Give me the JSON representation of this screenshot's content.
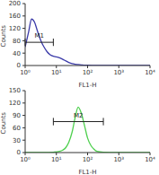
{
  "chart_data": [
    {
      "type": "line",
      "x_label": "FL1-H",
      "y_label": "Counts",
      "log": "x",
      "color": "#3a3aa8",
      "x": [
        1,
        1.3,
        1.6,
        2,
        2.5,
        3.2,
        4,
        5,
        6.3,
        8,
        10,
        12.6,
        16,
        20,
        25,
        32,
        40,
        50,
        63,
        80,
        100,
        200,
        1000,
        10000
      ],
      "values": [
        60,
        110,
        150,
        140,
        110,
        80,
        60,
        45,
        35,
        30,
        28,
        25,
        20,
        15,
        10,
        6,
        4,
        3,
        2,
        1,
        1,
        0,
        0,
        0
      ],
      "xlim": [
        1,
        10000
      ],
      "xticks": [
        {
          "value": 1,
          "label": "10⁰"
        },
        {
          "value": 10,
          "label": "10¹"
        },
        {
          "value": 100,
          "label": "10²"
        },
        {
          "value": 1000,
          "label": "10³"
        },
        {
          "value": 10000,
          "label": "10⁴"
        }
      ],
      "ylim": [
        0,
        200
      ],
      "yticks": [
        0,
        40,
        80,
        120,
        160,
        200
      ],
      "gate": {
        "label": "M1",
        "range": [
          1,
          8
        ],
        "y": 75
      }
    },
    {
      "type": "line",
      "x_label": "FL1-H",
      "y_label": "Counts",
      "log": "x",
      "color": "#4fd04f",
      "x": [
        1,
        2,
        4,
        8,
        12.6,
        16,
        20,
        25,
        32,
        40,
        50,
        63,
        80,
        100,
        126,
        160,
        200,
        320,
        1000,
        10000
      ],
      "values": [
        0,
        0,
        0,
        1,
        3,
        6,
        12,
        25,
        50,
        85,
        110,
        95,
        65,
        35,
        18,
        8,
        3,
        1,
        0,
        0
      ],
      "xlim": [
        1,
        10000
      ],
      "xticks": [
        {
          "value": 1,
          "label": "10⁰"
        },
        {
          "value": 10,
          "label": "10¹"
        },
        {
          "value": 100,
          "label": "10²"
        },
        {
          "value": 1000,
          "label": "10³"
        },
        {
          "value": 10000,
          "label": "10⁴"
        }
      ],
      "ylim": [
        0,
        150
      ],
      "yticks": [
        0,
        30,
        60,
        90,
        120,
        150
      ],
      "gate": {
        "label": "M2",
        "range": [
          8,
          320
        ],
        "y": 75
      }
    }
  ]
}
